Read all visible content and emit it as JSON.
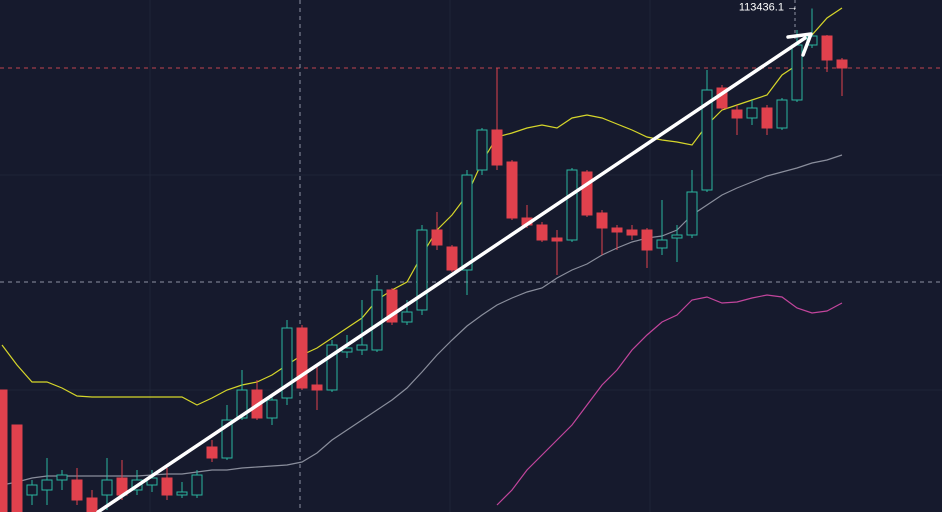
{
  "chart_data": {
    "type": "candlestick",
    "ylim": [
      100850,
      113650
    ],
    "up_color": "#2bb5a0",
    "down_color": "#e0414d",
    "open": [
      103900,
      103025,
      101275,
      101400,
      101650,
      101650,
      101200,
      101275,
      101700,
      101400,
      101525,
      101700,
      101275,
      101275,
      102475,
      102200,
      103200,
      103900,
      103200,
      103700,
      105450,
      104025,
      103900,
      104850,
      104900,
      104900,
      106400,
      105600,
      105900,
      107900,
      107475,
      106900,
      109400,
      110400,
      109600,
      108200,
      108025,
      107700,
      107650,
      109350,
      108325,
      107950,
      107900,
      107900,
      107450,
      107700,
      107775,
      108900,
      111450,
      110900,
      110700,
      110950,
      110450,
      111150,
      112525,
      112750,
      112150
    ],
    "high": [
      103900,
      103025,
      101650,
      102200,
      101900,
      101950,
      101400,
      102200,
      102150,
      101900,
      101900,
      101950,
      101600,
      101900,
      102650,
      103525,
      104400,
      104150,
      103775,
      105650,
      105525,
      104525,
      105150,
      105275,
      106150,
      106775,
      106450,
      106150,
      108025,
      108350,
      107525,
      109400,
      110450,
      111950,
      109650,
      108525,
      108100,
      107900,
      109450,
      109400,
      108400,
      108025,
      108025,
      107950,
      108650,
      108025,
      109400,
      111900,
      111525,
      111025,
      111150,
      111025,
      111200,
      112900,
      113436.1,
      112775,
      112200
    ],
    "low": [
      100850,
      100850,
      101025,
      101025,
      101400,
      101025,
      100850,
      100900,
      101150,
      101275,
      101350,
      101150,
      101200,
      101200,
      102100,
      102150,
      103150,
      103150,
      103025,
      103525,
      103900,
      103400,
      103850,
      104700,
      104775,
      104850,
      105525,
      105525,
      105775,
      107400,
      106850,
      106275,
      109275,
      109400,
      108150,
      107950,
      107600,
      106775,
      107600,
      108225,
      107275,
      107400,
      107650,
      106950,
      107275,
      107100,
      107700,
      108850,
      110900,
      110275,
      110525,
      110275,
      110400,
      111100,
      112450,
      111850,
      111250
    ],
    "close": [
      100850,
      100850,
      101525,
      101650,
      101775,
      101150,
      100850,
      101650,
      101275,
      101650,
      101700,
      101275,
      101350,
      101775,
      102200,
      103150,
      103900,
      103200,
      103650,
      105450,
      103950,
      103900,
      105025,
      104950,
      105025,
      106400,
      105600,
      105850,
      107900,
      107525,
      106900,
      109275,
      110400,
      109525,
      108200,
      108025,
      107650,
      107625,
      109400,
      108275,
      107950,
      107850,
      107775,
      107400,
      107650,
      107775,
      108850,
      111400,
      110950,
      110700,
      110950,
      110450,
      111150,
      112525,
      112750,
      112150,
      111950
    ],
    "overlays": [
      {
        "color": "#d6d62a",
        "values": [
          105025,
          104525,
          104100,
          104100,
          103950,
          103750,
          103725,
          103725,
          103725,
          103725,
          103725,
          103725,
          103725,
          103525,
          103700,
          103900,
          104025,
          104100,
          104275,
          104525,
          104775,
          104950,
          105200,
          105450,
          105700,
          106150,
          106400,
          106600,
          107275,
          107900,
          108275,
          108775,
          109600,
          110225,
          110325,
          110450,
          110525,
          110450,
          110700,
          110775,
          110700,
          110550,
          110400,
          110225,
          110150,
          110100,
          110025,
          110525,
          110900,
          111025,
          111150,
          111275,
          111775,
          112025,
          112775,
          113200,
          113450
        ]
      },
      {
        "color": "#8a8e9c",
        "values": [
          101525,
          101600,
          101700,
          101750,
          101750,
          101750,
          101750,
          101750,
          101750,
          101750,
          101775,
          101800,
          101800,
          101850,
          101900,
          101900,
          101950,
          101975,
          102000,
          102025,
          102100,
          102325,
          102650,
          102900,
          103150,
          103400,
          103650,
          103950,
          104350,
          104775,
          105150,
          105500,
          105775,
          106025,
          106200,
          106350,
          106450,
          106700,
          106900,
          107050,
          107275,
          107450,
          107600,
          107700,
          107750,
          107900,
          108275,
          108525,
          108775,
          108950,
          109100,
          109250,
          109350,
          109450,
          109575,
          109650,
          109775
        ]
      },
      {
        "color": "#c2459c",
        "values": [
          null,
          null,
          null,
          null,
          null,
          null,
          null,
          null,
          null,
          null,
          null,
          null,
          null,
          null,
          null,
          null,
          null,
          null,
          null,
          null,
          null,
          null,
          null,
          null,
          null,
          null,
          null,
          null,
          null,
          null,
          null,
          null,
          null,
          101025,
          101400,
          101900,
          102275,
          102650,
          103025,
          103525,
          104025,
          104400,
          104900,
          105275,
          105600,
          105775,
          106150,
          106225,
          106075,
          106100,
          106200,
          106275,
          106225,
          105950,
          105825,
          105875,
          106075
        ]
      }
    ],
    "high_label": "113436.1 →"
  }
}
